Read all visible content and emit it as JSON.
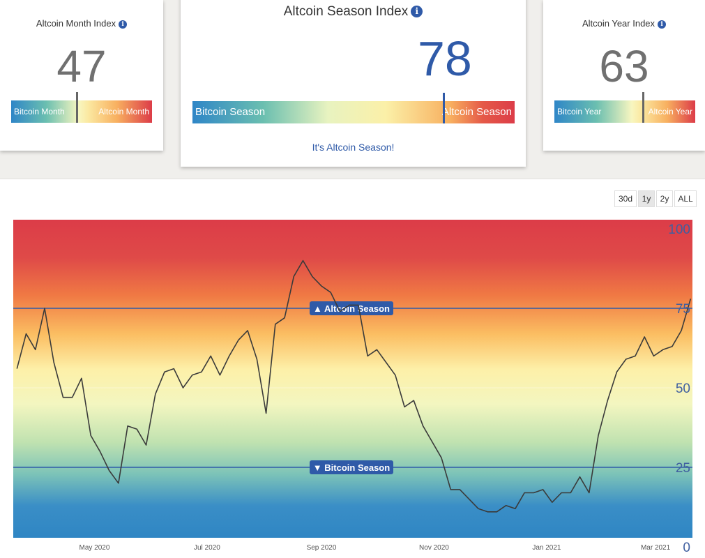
{
  "month_card": {
    "title": "Altcoin Month Index",
    "info_icon": "i",
    "value": "47",
    "left_label": "Bitcoin Month",
    "right_label": "Altcoin Month",
    "level": 47
  },
  "season_card": {
    "title": "Altcoin Season Index",
    "info_icon": "i",
    "value": "78",
    "left_label": "Bitcoin Season",
    "right_label": "Altcoin Season",
    "status": "It's Altcoin Season!",
    "level": 78
  },
  "year_card": {
    "title": "Altcoin Year Index",
    "info_icon": "i",
    "value": "63",
    "left_label": "Bitcoin Year",
    "right_label": "Altcoin Year",
    "level": 63
  },
  "range_buttons": [
    {
      "label": "30d",
      "active": false
    },
    {
      "label": "1y",
      "active": true
    },
    {
      "label": "2y",
      "active": false
    },
    {
      "label": "ALL",
      "active": false
    }
  ],
  "colors": {
    "accent": "#2f5aa8",
    "bitcoin_blue": "#3a86c4",
    "altcoin_red": "#dc3c48"
  },
  "chart_data": {
    "type": "line",
    "ylim": [
      0,
      100
    ],
    "y_ticks": [
      "100",
      "75",
      "50",
      "25",
      "0"
    ],
    "x_tick_labels": [
      "May 2020",
      "Jul 2020",
      "Sep 2020",
      "Nov 2020",
      "Jan 2021",
      "Mar 2021"
    ],
    "thresholds": [
      {
        "label": "▲ Altcoin Season",
        "value": 75
      },
      {
        "label": "▼ Bitcoin Season",
        "value": 25
      }
    ],
    "series": [
      {
        "x": [
          "2020-03-20",
          "2020-03-25",
          "2020-03-30",
          "2020-04-04",
          "2020-04-09",
          "2020-04-14",
          "2020-04-19",
          "2020-04-24",
          "2020-04-29",
          "2020-05-04",
          "2020-05-09",
          "2020-05-14",
          "2020-05-19",
          "2020-05-24",
          "2020-05-29",
          "2020-06-03",
          "2020-06-08",
          "2020-06-13",
          "2020-06-18",
          "2020-06-23",
          "2020-06-28",
          "2020-07-03",
          "2020-07-08",
          "2020-07-13",
          "2020-07-18",
          "2020-07-23",
          "2020-07-28",
          "2020-08-02",
          "2020-08-07",
          "2020-08-12",
          "2020-08-17",
          "2020-08-22",
          "2020-08-27",
          "2020-09-01",
          "2020-09-06",
          "2020-09-11",
          "2020-09-16",
          "2020-09-21",
          "2020-09-26",
          "2020-10-01",
          "2020-10-06",
          "2020-10-11",
          "2020-10-16",
          "2020-10-21",
          "2020-10-26",
          "2020-10-31",
          "2020-11-05",
          "2020-11-10",
          "2020-11-15",
          "2020-11-20",
          "2020-11-25",
          "2020-11-30",
          "2020-12-05",
          "2020-12-10",
          "2020-12-15",
          "2020-12-20",
          "2020-12-25",
          "2020-12-30",
          "2021-01-04",
          "2021-01-09",
          "2021-01-14",
          "2021-01-19",
          "2021-01-24",
          "2021-01-29",
          "2021-02-03",
          "2021-02-08",
          "2021-02-13",
          "2021-02-18",
          "2021-02-23",
          "2021-02-28",
          "2021-03-05",
          "2021-03-10",
          "2021-03-15",
          "2021-03-20"
        ],
        "values": [
          56,
          67,
          62,
          75,
          58,
          47,
          47,
          53,
          35,
          30,
          24,
          20,
          38,
          37,
          32,
          48,
          55,
          56,
          50,
          54,
          55,
          60,
          54,
          60,
          65,
          68,
          59,
          42,
          70,
          72,
          85,
          90,
          85,
          82,
          80,
          74,
          76,
          76,
          60,
          62,
          58,
          54,
          44,
          46,
          38,
          33,
          28,
          18,
          18,
          15,
          12,
          11,
          11,
          13,
          12,
          17,
          17,
          18,
          14,
          17,
          17,
          22,
          17,
          35,
          46,
          55,
          59,
          60,
          66,
          60,
          62,
          63,
          68,
          78
        ]
      }
    ]
  }
}
